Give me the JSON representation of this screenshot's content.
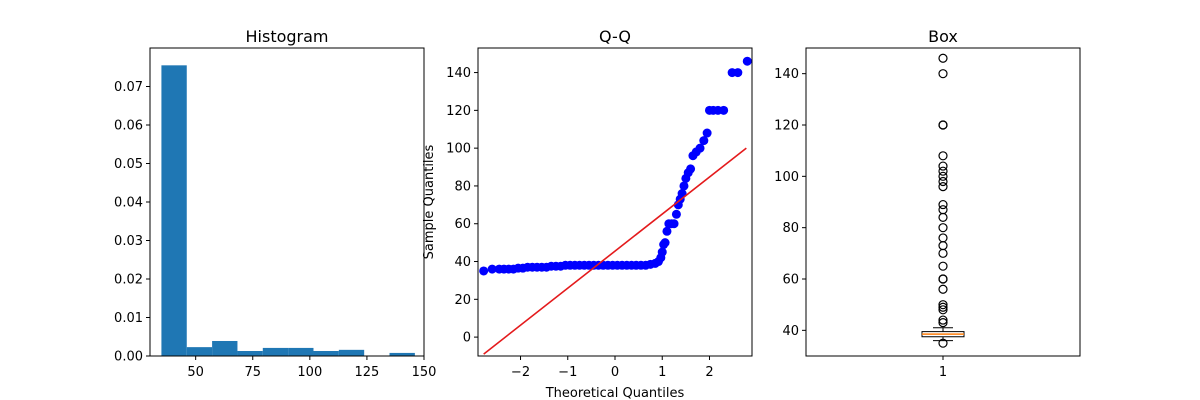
{
  "chart_data": [
    {
      "type": "histogram",
      "title": "Histogram",
      "xlim": [
        30,
        150
      ],
      "ylim": [
        0,
        0.08
      ],
      "xticks": [
        50,
        75,
        100,
        125,
        150
      ],
      "yticks": [
        0.0,
        0.01,
        0.02,
        0.03,
        0.04,
        0.05,
        0.06,
        0.07
      ],
      "bar_color": "#1f77b4",
      "bins": [
        {
          "x0": 35.0,
          "x1": 46.1,
          "density": 0.0755
        },
        {
          "x0": 46.1,
          "x1": 57.2,
          "density": 0.0023
        },
        {
          "x0": 57.2,
          "x1": 68.3,
          "density": 0.0039
        },
        {
          "x0": 68.3,
          "x1": 79.4,
          "density": 0.0013
        },
        {
          "x0": 79.4,
          "x1": 90.5,
          "density": 0.0021
        },
        {
          "x0": 90.5,
          "x1": 101.6,
          "density": 0.0021
        },
        {
          "x0": 101.6,
          "x1": 112.7,
          "density": 0.0013
        },
        {
          "x0": 112.7,
          "x1": 123.8,
          "density": 0.0016
        },
        {
          "x0": 123.8,
          "x1": 134.9,
          "density": 0.0
        },
        {
          "x0": 134.9,
          "x1": 146.0,
          "density": 0.0008
        }
      ]
    },
    {
      "type": "scatter",
      "title": "Q-Q",
      "xlabel": "Theoretical Quantiles",
      "ylabel": "Sample Quantiles",
      "xlim": [
        -2.9,
        2.9
      ],
      "ylim": [
        -10,
        153
      ],
      "xticks": [
        -2,
        -1,
        0,
        1,
        2
      ],
      "yticks": [
        0,
        20,
        40,
        60,
        80,
        100,
        120,
        140
      ],
      "point_color": "#0000ff",
      "line_color": "#e41a1c",
      "reference_line": {
        "x": [
          -2.78,
          2.78
        ],
        "y": [
          -9,
          100
        ]
      },
      "points": [
        [
          -2.78,
          35
        ],
        [
          -2.6,
          36
        ],
        [
          -2.45,
          36
        ],
        [
          -2.35,
          36
        ],
        [
          -2.25,
          36
        ],
        [
          -2.15,
          36
        ],
        [
          -2.05,
          36.5
        ],
        [
          -1.95,
          36.5
        ],
        [
          -1.85,
          37
        ],
        [
          -1.75,
          37
        ],
        [
          -1.65,
          37
        ],
        [
          -1.55,
          37
        ],
        [
          -1.45,
          37
        ],
        [
          -1.35,
          37.5
        ],
        [
          -1.25,
          37.5
        ],
        [
          -1.15,
          37.5
        ],
        [
          -1.05,
          38
        ],
        [
          -0.95,
          38
        ],
        [
          -0.85,
          38
        ],
        [
          -0.75,
          38
        ],
        [
          -0.65,
          38
        ],
        [
          -0.55,
          38
        ],
        [
          -0.45,
          38
        ],
        [
          -0.35,
          38
        ],
        [
          -0.25,
          38
        ],
        [
          -0.15,
          38
        ],
        [
          -0.05,
          38
        ],
        [
          0.05,
          38
        ],
        [
          0.15,
          38
        ],
        [
          0.25,
          38
        ],
        [
          0.35,
          38
        ],
        [
          0.45,
          38
        ],
        [
          0.55,
          38
        ],
        [
          0.65,
          38
        ],
        [
          0.75,
          38.5
        ],
        [
          0.85,
          39
        ],
        [
          0.92,
          40
        ],
        [
          0.97,
          42
        ],
        [
          1.0,
          45
        ],
        [
          1.03,
          49
        ],
        [
          1.06,
          50
        ],
        [
          1.1,
          56
        ],
        [
          1.14,
          60
        ],
        [
          1.2,
          60
        ],
        [
          1.25,
          60
        ],
        [
          1.3,
          65
        ],
        [
          1.34,
          70
        ],
        [
          1.38,
          73
        ],
        [
          1.42,
          76
        ],
        [
          1.46,
          80
        ],
        [
          1.5,
          84
        ],
        [
          1.55,
          87
        ],
        [
          1.6,
          89
        ],
        [
          1.65,
          96
        ],
        [
          1.72,
          98
        ],
        [
          1.8,
          100
        ],
        [
          1.88,
          104
        ],
        [
          1.95,
          108
        ],
        [
          2.0,
          120
        ],
        [
          2.08,
          120
        ],
        [
          2.18,
          120
        ],
        [
          2.3,
          120
        ],
        [
          2.48,
          140
        ],
        [
          2.6,
          140
        ],
        [
          2.8,
          146
        ]
      ]
    },
    {
      "type": "box",
      "title": "Box",
      "ylim": [
        30,
        150
      ],
      "yticks": [
        40,
        60,
        80,
        100,
        120,
        140
      ],
      "category": "1",
      "box": {
        "whisker_low": 36,
        "q1": 37.5,
        "median": 38.5,
        "q3": 39.5,
        "whisker_high": 41
      },
      "box_color": "#000000",
      "median_color": "#ff7f0e",
      "outliers": [
        35,
        43,
        44,
        48,
        49,
        50,
        56,
        60,
        60,
        65,
        70,
        73,
        76,
        80,
        84,
        87,
        89,
        96,
        98,
        100,
        102,
        104,
        108,
        120,
        120,
        140,
        146
      ]
    }
  ]
}
